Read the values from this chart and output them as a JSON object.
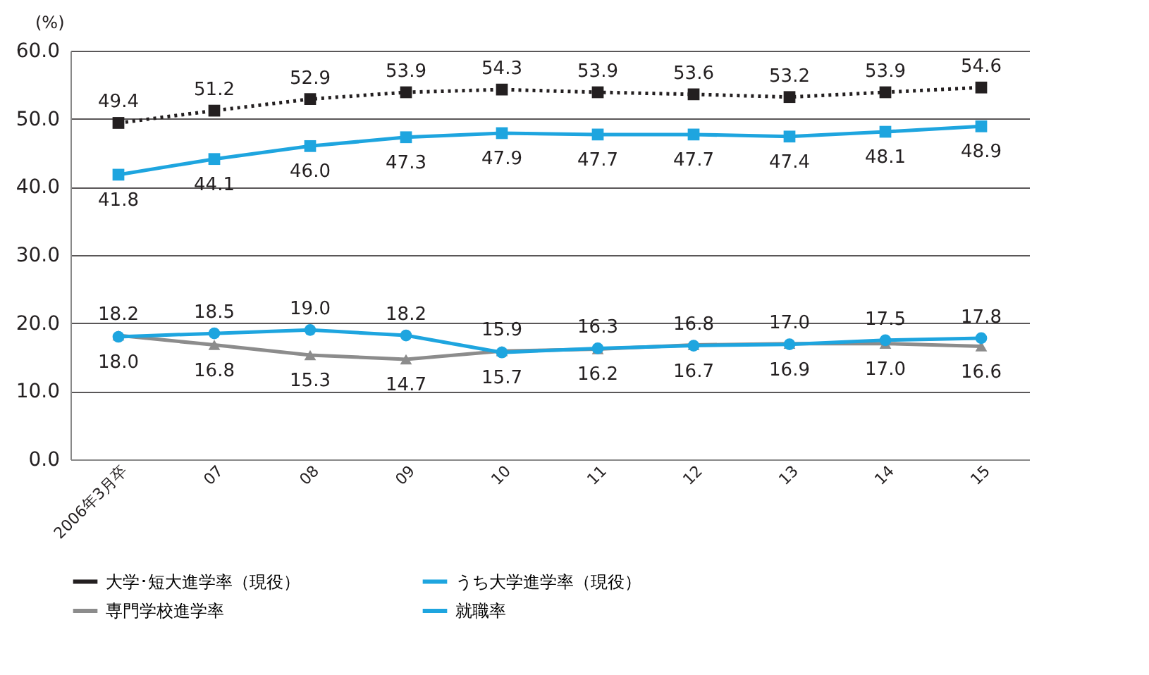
{
  "chart_data": {
    "type": "line",
    "ylabel": "(%)",
    "categories": [
      "2006年3月卒",
      "07",
      "08",
      "09",
      "10",
      "11",
      "12",
      "13",
      "14",
      "15"
    ],
    "series": [
      {
        "name": "大学･短大進学率（現役）",
        "color": "#231f20",
        "marker": "square",
        "line_style": "dotted",
        "values": [
          49.4,
          51.2,
          52.9,
          53.9,
          54.3,
          53.9,
          53.6,
          53.2,
          53.9,
          54.6
        ],
        "value_labels": [
          "49.4",
          "51.2",
          "52.9",
          "53.9",
          "54.3",
          "53.9",
          "53.6",
          "53.2",
          "53.9",
          "54.6"
        ]
      },
      {
        "name": "うち大学進学率（現役）",
        "color": "#1ea5df",
        "marker": "square",
        "line_style": "solid",
        "values": [
          41.8,
          44.1,
          46.0,
          47.3,
          47.9,
          47.7,
          47.7,
          47.4,
          48.1,
          48.9
        ],
        "value_labels": [
          "41.8",
          "44.1",
          "46.0",
          "47.3",
          "47.9",
          "47.7",
          "47.7",
          "47.4",
          "48.1",
          "48.9"
        ]
      },
      {
        "name": "専門学校進学率",
        "color": "#8c8c8c",
        "marker": "triangle",
        "line_style": "solid",
        "values": [
          18.2,
          16.8,
          15.3,
          14.7,
          15.9,
          16.2,
          16.8,
          17.0,
          17.0,
          16.6
        ],
        "value_labels": [
          "18.2",
          "16.8",
          "15.3",
          "14.7",
          "15.9",
          "16.2",
          "16.8",
          "17.0",
          "17.0",
          "16.6"
        ]
      },
      {
        "name": "就職率",
        "color": "#1ea5df",
        "marker": "circle",
        "line_style": "solid",
        "values": [
          18.0,
          18.5,
          19.0,
          18.2,
          15.7,
          16.3,
          16.7,
          16.9,
          17.5,
          17.8
        ],
        "value_labels": [
          "18.0",
          "18.5",
          "19.0",
          "18.2",
          "15.7",
          "16.3",
          "16.7",
          "16.9",
          "17.5",
          "17.8"
        ]
      }
    ],
    "ylim": [
      0,
      60
    ],
    "yticks": [
      {
        "value": 0,
        "label": "0.0"
      },
      {
        "value": 10,
        "label": "10.0"
      },
      {
        "value": 20,
        "label": "20.0"
      },
      {
        "value": 30,
        "label": "30.0"
      },
      {
        "value": 40,
        "label": "40.0"
      },
      {
        "value": 50,
        "label": "50.0"
      },
      {
        "value": 60,
        "label": "60.0"
      }
    ],
    "grid": "y",
    "legend": "bottom"
  }
}
